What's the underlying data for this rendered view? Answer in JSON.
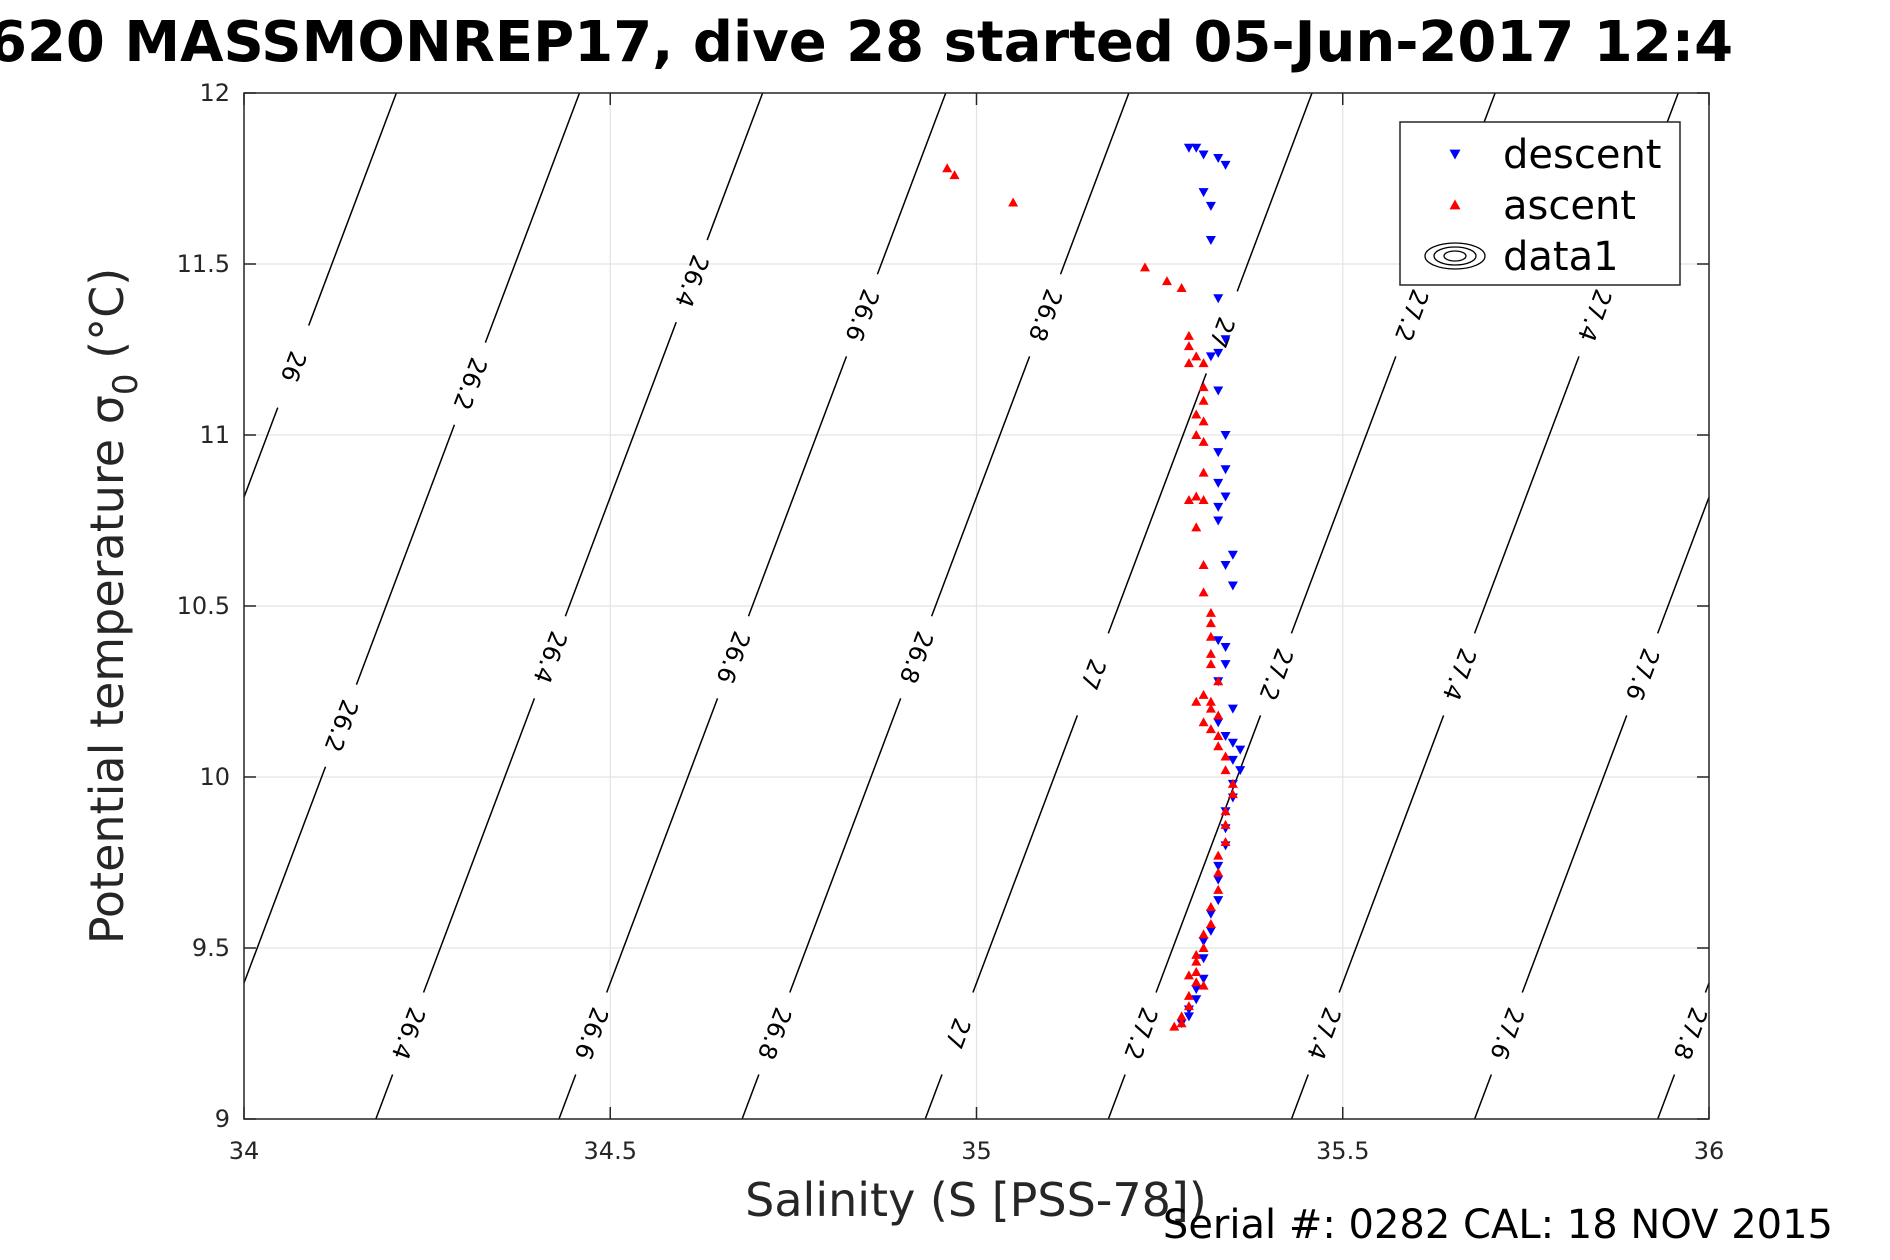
{
  "header": {
    "title": "620 MASSMONREP17, dive 28 started 05-Jun-2017 12:4"
  },
  "footer": {
    "serial": "Serial #: 0282  CAL: 18 NOV 2015"
  },
  "chart_data": {
    "type": "scatter",
    "xlabel": "Salinity (S [PSS-78])",
    "ylabel": "Potential temperature",
    "ylabel_symbol": "σ",
    "ylabel_sub": "0",
    "ylabel_unit": "(°C)",
    "xlim": [
      34,
      36
    ],
    "ylim": [
      9,
      12
    ],
    "xticks": [
      34,
      34.5,
      35,
      35.5,
      36
    ],
    "xtick_labels": [
      "34",
      "34.5",
      "35",
      "35.5",
      "36"
    ],
    "yticks": [
      9,
      9.5,
      10,
      10.5,
      11,
      11.5,
      12
    ],
    "ytick_labels": [
      "9",
      "9.5",
      "10",
      "10.5",
      "11",
      "11.5",
      "12"
    ],
    "grid": true,
    "legend_position": "top-right",
    "legend": [
      {
        "label": "descent",
        "marker": "triangle-down",
        "color": "#0000ff"
      },
      {
        "label": "ascent",
        "marker": "triangle-up",
        "color": "#ff0000"
      },
      {
        "label": "data1",
        "marker": "contour",
        "color": "#000000"
      }
    ],
    "contours": [
      {
        "level": "26",
        "s_at_9": 33.68,
        "labels_t": [
          11.2
        ]
      },
      {
        "level": "26.2",
        "s_at_9": 33.93,
        "labels_t": [
          10.15,
          11.15
        ]
      },
      {
        "level": "26.4",
        "s_at_9": 34.18,
        "labels_t": [
          9.25,
          10.35,
          11.45
        ]
      },
      {
        "level": "26.6",
        "s_at_9": 34.43,
        "labels_t": [
          9.25,
          10.35,
          11.35
        ]
      },
      {
        "level": "26.8",
        "s_at_9": 34.68,
        "labels_t": [
          9.25,
          10.35,
          11.35
        ]
      },
      {
        "level": "27",
        "s_at_9": 34.93,
        "labels_t": [
          9.25,
          10.3,
          11.3
        ]
      },
      {
        "level": "27.2",
        "s_at_9": 35.18,
        "labels_t": [
          9.25,
          10.3,
          11.35
        ]
      },
      {
        "level": "27.4",
        "s_at_9": 35.43,
        "labels_t": [
          9.25,
          10.3,
          11.35
        ]
      },
      {
        "level": "27.6",
        "s_at_9": 35.68,
        "labels_t": [
          9.25,
          10.3
        ]
      },
      {
        "level": "27.8",
        "s_at_9": 35.93,
        "labels_t": [
          9.25
        ]
      }
    ],
    "series": [
      {
        "name": "descent",
        "color": "#0000ff",
        "marker": "triangle-down",
        "points": [
          [
            35.29,
            11.84
          ],
          [
            35.3,
            11.84
          ],
          [
            35.31,
            11.82
          ],
          [
            35.33,
            11.81
          ],
          [
            35.34,
            11.79
          ],
          [
            35.31,
            11.71
          ],
          [
            35.32,
            11.67
          ],
          [
            35.32,
            11.57
          ],
          [
            35.33,
            11.4
          ],
          [
            35.34,
            11.28
          ],
          [
            35.33,
            11.24
          ],
          [
            35.32,
            11.23
          ],
          [
            35.33,
            11.13
          ],
          [
            35.34,
            11.0
          ],
          [
            35.33,
            10.95
          ],
          [
            35.34,
            10.9
          ],
          [
            35.33,
            10.86
          ],
          [
            35.34,
            10.82
          ],
          [
            35.33,
            10.79
          ],
          [
            35.33,
            10.75
          ],
          [
            35.35,
            10.65
          ],
          [
            35.34,
            10.62
          ],
          [
            35.35,
            10.56
          ],
          [
            35.33,
            10.4
          ],
          [
            35.34,
            10.38
          ],
          [
            35.34,
            10.33
          ],
          [
            35.33,
            10.28
          ],
          [
            35.35,
            10.2
          ],
          [
            35.33,
            10.16
          ],
          [
            35.34,
            10.12
          ],
          [
            35.35,
            10.1
          ],
          [
            35.36,
            10.08
          ],
          [
            35.35,
            10.05
          ],
          [
            35.36,
            10.02
          ],
          [
            35.35,
            9.98
          ],
          [
            35.35,
            9.94
          ],
          [
            35.34,
            9.9
          ],
          [
            35.34,
            9.85
          ],
          [
            35.34,
            9.8
          ],
          [
            35.33,
            9.74
          ],
          [
            35.33,
            9.7
          ],
          [
            35.33,
            9.64
          ],
          [
            35.32,
            9.6
          ],
          [
            35.32,
            9.55
          ],
          [
            35.31,
            9.52
          ],
          [
            35.31,
            9.47
          ],
          [
            35.31,
            9.41
          ],
          [
            35.3,
            9.38
          ],
          [
            35.3,
            9.35
          ],
          [
            35.29,
            9.32
          ],
          [
            35.29,
            9.3
          ],
          [
            35.28,
            9.28
          ]
        ]
      },
      {
        "name": "ascent",
        "color": "#ff0000",
        "marker": "triangle-up",
        "points": [
          [
            34.96,
            11.78
          ],
          [
            34.97,
            11.76
          ],
          [
            35.05,
            11.68
          ],
          [
            35.23,
            11.49
          ],
          [
            35.26,
            11.45
          ],
          [
            35.28,
            11.43
          ],
          [
            35.29,
            11.29
          ],
          [
            35.29,
            11.26
          ],
          [
            35.3,
            11.23
          ],
          [
            35.29,
            11.21
          ],
          [
            35.31,
            11.21
          ],
          [
            35.31,
            11.14
          ],
          [
            35.31,
            11.1
          ],
          [
            35.3,
            11.06
          ],
          [
            35.31,
            11.04
          ],
          [
            35.3,
            11.0
          ],
          [
            35.31,
            10.98
          ],
          [
            35.31,
            10.89
          ],
          [
            35.3,
            10.82
          ],
          [
            35.31,
            10.81
          ],
          [
            35.29,
            10.81
          ],
          [
            35.3,
            10.73
          ],
          [
            35.31,
            10.62
          ],
          [
            35.31,
            10.54
          ],
          [
            35.32,
            10.48
          ],
          [
            35.32,
            10.45
          ],
          [
            35.32,
            10.41
          ],
          [
            35.32,
            10.36
          ],
          [
            35.32,
            10.33
          ],
          [
            35.33,
            10.28
          ],
          [
            35.31,
            10.24
          ],
          [
            35.32,
            10.22
          ],
          [
            35.32,
            10.2
          ],
          [
            35.33,
            10.18
          ],
          [
            35.31,
            10.16
          ],
          [
            35.32,
            10.14
          ],
          [
            35.33,
            10.12
          ],
          [
            35.33,
            10.09
          ],
          [
            35.34,
            10.06
          ],
          [
            35.34,
            10.02
          ],
          [
            35.35,
            9.98
          ],
          [
            35.35,
            9.95
          ],
          [
            35.34,
            9.9
          ],
          [
            35.34,
            9.86
          ],
          [
            35.34,
            9.81
          ],
          [
            35.33,
            9.77
          ],
          [
            35.33,
            9.72
          ],
          [
            35.33,
            9.67
          ],
          [
            35.32,
            9.62
          ],
          [
            35.32,
            9.57
          ],
          [
            35.31,
            9.54
          ],
          [
            35.31,
            9.5
          ],
          [
            35.3,
            9.46
          ],
          [
            35.3,
            9.43
          ],
          [
            35.3,
            9.4
          ],
          [
            35.29,
            9.36
          ],
          [
            35.29,
            9.33
          ],
          [
            35.28,
            9.3
          ],
          [
            35.28,
            9.28
          ],
          [
            35.27,
            9.27
          ],
          [
            35.3,
            10.22
          ],
          [
            35.3,
            9.48
          ],
          [
            35.31,
            9.39
          ],
          [
            35.29,
            9.42
          ]
        ]
      }
    ]
  }
}
